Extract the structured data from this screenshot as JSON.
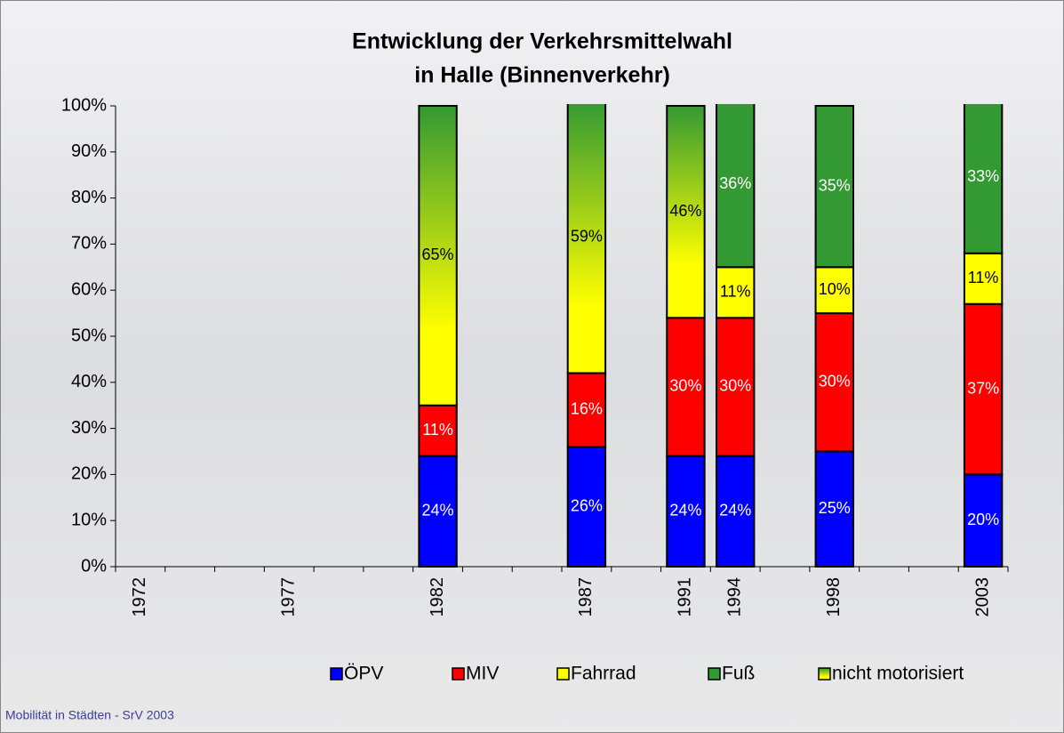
{
  "chart_data": {
    "type": "stacked_bar",
    "title": [
      "Entwicklung der Verkehrsmittelwahl",
      "in Halle (Binnenverkehr)"
    ],
    "footer": "Mobilität in Städten - SrV 2003",
    "categories": [
      "1972",
      null,
      null,
      "1977",
      null,
      null,
      "1982",
      null,
      null,
      "1987",
      null,
      "1991",
      "1994",
      null,
      "1998",
      null,
      null,
      "2003"
    ],
    "series": [
      {
        "name": "ÖPV",
        "color": "#0000ff",
        "label_color": "#ffffff",
        "values": [
          null,
          null,
          null,
          null,
          null,
          null,
          24,
          null,
          null,
          26,
          null,
          24,
          24,
          null,
          25,
          null,
          null,
          20
        ],
        "value_labels": [
          null,
          null,
          null,
          null,
          null,
          null,
          "24%",
          null,
          null,
          "26%",
          null,
          "24%",
          "24%",
          null,
          "25%",
          null,
          null,
          "20%"
        ]
      },
      {
        "name": "MIV",
        "color": "#ff0000",
        "label_color": "#ffffff",
        "values": [
          null,
          null,
          null,
          null,
          null,
          null,
          11,
          null,
          null,
          16,
          null,
          30,
          30,
          null,
          30,
          null,
          null,
          37
        ],
        "value_labels": [
          null,
          null,
          null,
          null,
          null,
          null,
          "11%",
          null,
          null,
          "16%",
          null,
          "30%",
          "30%",
          null,
          "30%",
          null,
          null,
          "37%"
        ]
      },
      {
        "name": "Fahrrad",
        "color": "#ffff00",
        "label_color": "#000000",
        "values": [
          null,
          null,
          null,
          null,
          null,
          null,
          null,
          null,
          null,
          null,
          null,
          null,
          11,
          null,
          10,
          null,
          null,
          11
        ],
        "value_labels": [
          null,
          null,
          null,
          null,
          null,
          null,
          null,
          null,
          null,
          null,
          null,
          null,
          "11%",
          null,
          "10%",
          null,
          null,
          "11%"
        ]
      },
      {
        "name": "Fuß",
        "color": "#339933",
        "label_color": "#ffffff",
        "values": [
          null,
          null,
          null,
          null,
          null,
          null,
          null,
          null,
          null,
          null,
          null,
          null,
          36,
          null,
          35,
          null,
          null,
          33
        ],
        "value_labels": [
          null,
          null,
          null,
          null,
          null,
          null,
          null,
          null,
          null,
          null,
          null,
          null,
          "36%",
          null,
          "35%",
          null,
          null,
          "33%"
        ]
      },
      {
        "name": "nicht motorisiert",
        "color": [
          "#339933",
          "#ffff00"
        ],
        "label_color": "#000000",
        "values": [
          null,
          null,
          null,
          null,
          null,
          null,
          65,
          null,
          null,
          59,
          null,
          46,
          null,
          null,
          null,
          null,
          null,
          null
        ],
        "value_labels": [
          null,
          null,
          null,
          null,
          null,
          null,
          "65%",
          null,
          null,
          "59%",
          null,
          "46%",
          null,
          null,
          null,
          null,
          null,
          null
        ]
      }
    ],
    "ylim": [
      0,
      100
    ],
    "yticks": [
      {
        "value": 0,
        "label": "0%"
      },
      {
        "value": 10,
        "label": "10%"
      },
      {
        "value": 20,
        "label": "20%"
      },
      {
        "value": 30,
        "label": "30%"
      },
      {
        "value": 40,
        "label": "40%"
      },
      {
        "value": 50,
        "label": "50%"
      },
      {
        "value": 60,
        "label": "60%"
      },
      {
        "value": 70,
        "label": "70%"
      },
      {
        "value": 80,
        "label": "80%"
      },
      {
        "value": 90,
        "label": "90%"
      },
      {
        "value": 100,
        "label": "100%"
      }
    ],
    "grid": false,
    "legend": "bottom"
  }
}
